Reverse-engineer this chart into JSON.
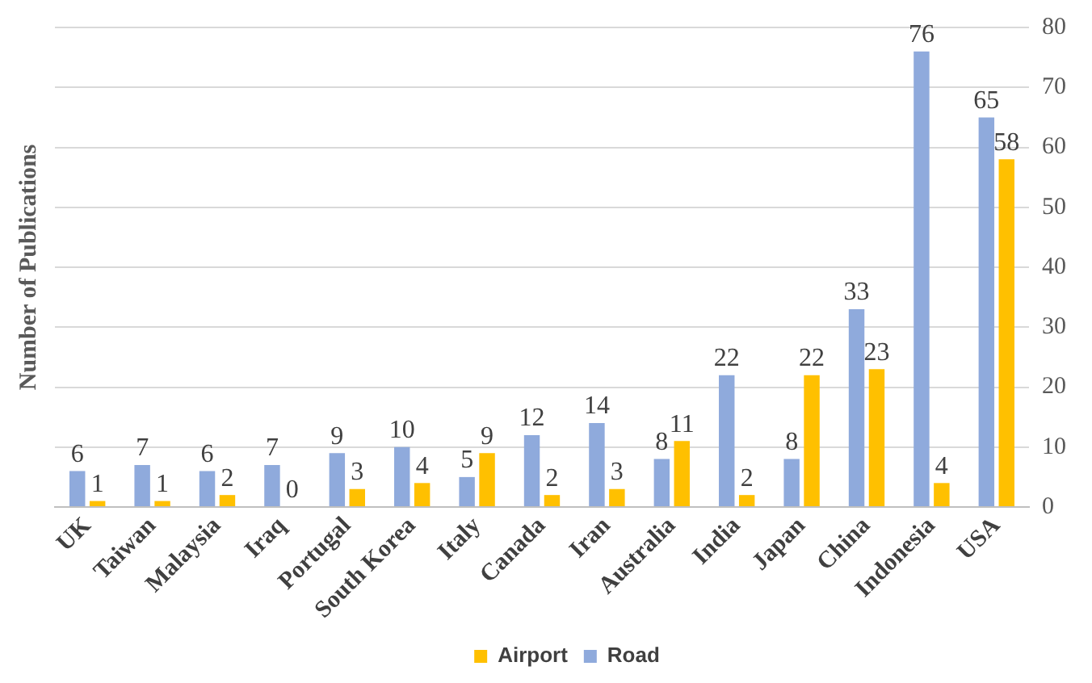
{
  "chart_data": {
    "type": "bar",
    "ylabel": "Number of Publications",
    "categories": [
      "UK",
      "Taiwan",
      "Malaysia",
      "Iraq",
      "Portugal",
      "South Korea",
      "Italy",
      "Canada",
      "Iran",
      "Australia",
      "India",
      "Japan",
      "China",
      "Indonesia",
      "USA"
    ],
    "series": [
      {
        "name": "Road",
        "color": "#8faadc",
        "values": [
          6,
          7,
          6,
          7,
          9,
          10,
          5,
          12,
          14,
          8,
          22,
          8,
          33,
          76,
          65
        ]
      },
      {
        "name": "Airport",
        "color": "#ffc000",
        "values": [
          1,
          1,
          2,
          0,
          3,
          4,
          9,
          2,
          3,
          11,
          2,
          22,
          23,
          4,
          58
        ]
      }
    ],
    "ylim": [
      0,
      80
    ],
    "yticks": [
      0,
      10,
      20,
      30,
      40,
      50,
      60,
      70,
      80
    ],
    "grid": "y",
    "legend": "bottom",
    "data_labels": true
  }
}
